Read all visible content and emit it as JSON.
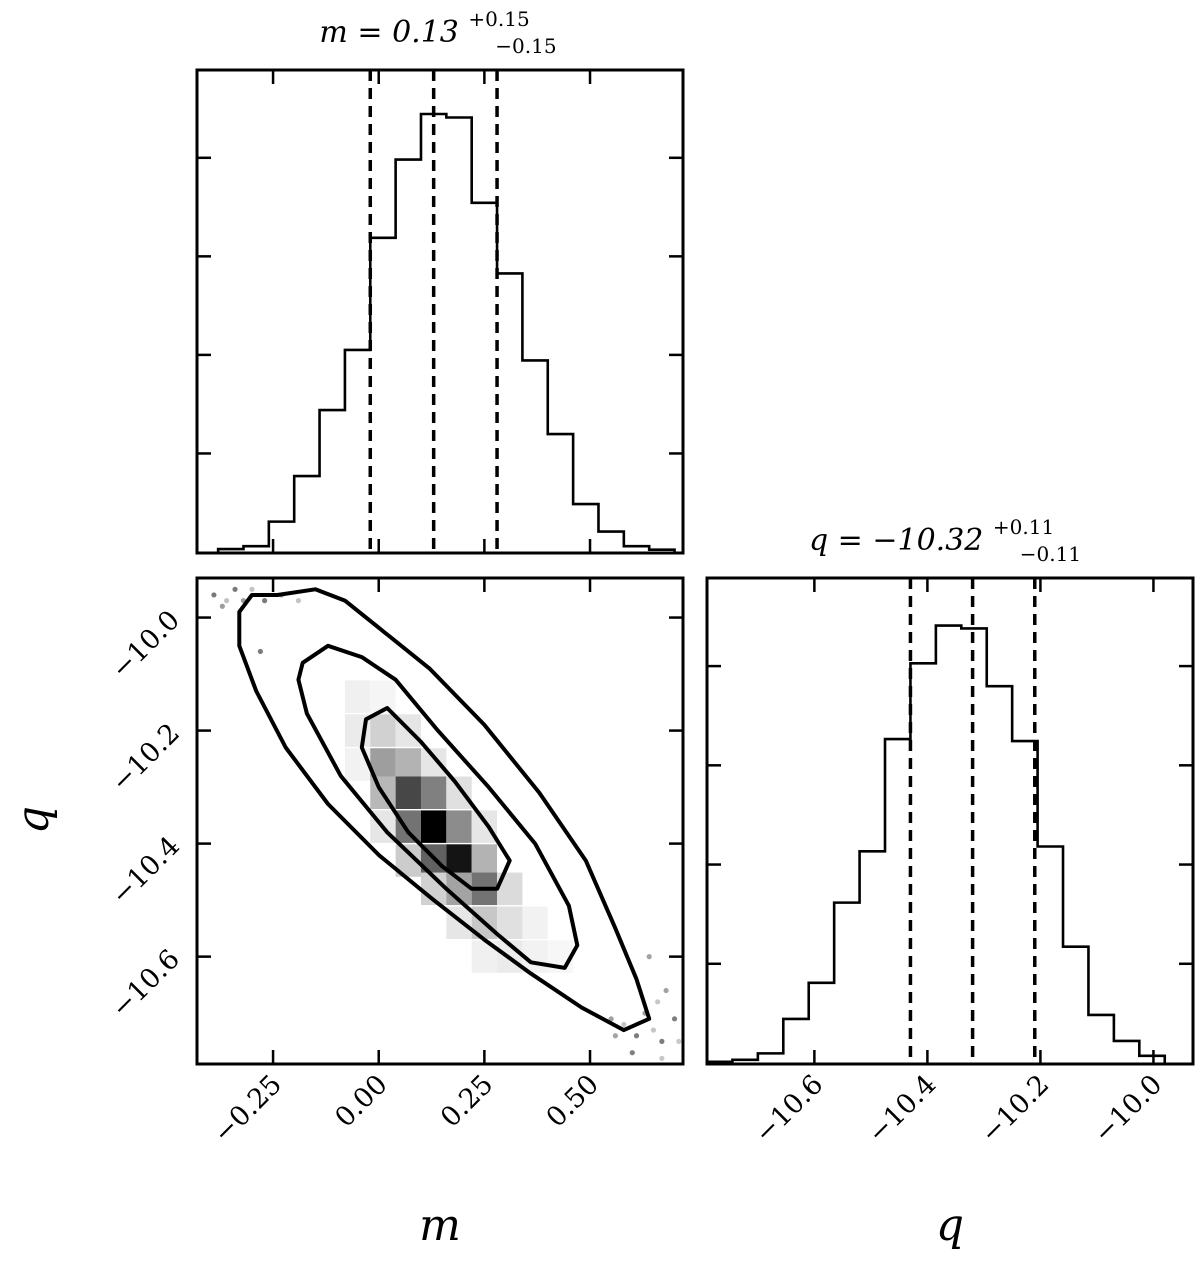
{
  "chart_data": [
    {
      "type": "histogram",
      "panel": "m-marginal",
      "title": {
        "lhs": "m = 0.13",
        "sup": "+0.15",
        "sub": "−0.15"
      },
      "xlim": [
        -0.43,
        0.72
      ],
      "bin_edges": [
        -0.38,
        -0.32,
        -0.26,
        -0.2,
        -0.14,
        -0.08,
        -0.02,
        0.04,
        0.1,
        0.16,
        0.22,
        0.28,
        0.34,
        0.4,
        0.46,
        0.52,
        0.58,
        0.64,
        0.7
      ],
      "counts": [
        5,
        10,
        52,
        130,
        243,
        346,
        538,
        672,
        750,
        744,
        598,
        477,
        328,
        202,
        82,
        35,
        10,
        4
      ],
      "count_max": 750,
      "quantiles": [
        -0.02,
        0.13,
        0.28
      ]
    },
    {
      "type": "histogram",
      "panel": "q-marginal",
      "title": {
        "lhs": "q = −10.32",
        "sup": "+0.11",
        "sub": "−0.11"
      },
      "xlim": [
        -10.79,
        -9.93
      ],
      "xlabel": "q",
      "xticks": [
        "−10.6",
        "−10.4",
        "−10.2",
        "−10.0"
      ],
      "xtick_values": [
        -10.6,
        -10.4,
        -10.2,
        -10.0
      ],
      "bin_edges": [
        -10.79,
        -10.745,
        -10.7,
        -10.655,
        -10.61,
        -10.565,
        -10.52,
        -10.475,
        -10.43,
        -10.385,
        -10.34,
        -10.295,
        -10.25,
        -10.205,
        -10.16,
        -10.115,
        -10.07,
        -10.025,
        -9.98
      ],
      "counts": [
        3,
        8,
        24,
        110,
        200,
        400,
        528,
        808,
        997,
        1091,
        1084,
        940,
        803,
        540,
        290,
        120,
        55,
        18
      ],
      "count_max": 1100,
      "quantiles": [
        -10.43,
        -10.32,
        -10.21
      ]
    },
    {
      "type": "heatmap",
      "panel": "m-q-joint",
      "xlim": [
        -0.43,
        0.72
      ],
      "ylim": [
        -10.79,
        -9.93
      ],
      "xlabel": "m",
      "ylabel": "q",
      "xticks": [
        "−0.25",
        "0.00",
        "0.25",
        "0.50"
      ],
      "xtick_values": [
        -0.25,
        0.0,
        0.25,
        0.5
      ],
      "yticks": [
        "−10.0",
        "−10.2",
        "−10.4",
        "−10.6"
      ],
      "ytick_values": [
        -10.0,
        -10.2,
        -10.4,
        -10.6
      ],
      "cells": [
        {
          "m": -0.05,
          "q": -10.14,
          "density": 0.06
        },
        {
          "m": 0.01,
          "q": -10.14,
          "density": 0.04
        },
        {
          "m": -0.05,
          "q": -10.2,
          "density": 0.08
        },
        {
          "m": 0.01,
          "q": -10.2,
          "density": 0.18
        },
        {
          "m": 0.07,
          "q": -10.2,
          "density": 0.1
        },
        {
          "m": -0.05,
          "q": -10.26,
          "density": 0.05
        },
        {
          "m": 0.01,
          "q": -10.26,
          "density": 0.38
        },
        {
          "m": 0.07,
          "q": -10.26,
          "density": 0.3
        },
        {
          "m": 0.13,
          "q": -10.26,
          "density": 0.1
        },
        {
          "m": 0.01,
          "q": -10.31,
          "density": 0.28
        },
        {
          "m": 0.07,
          "q": -10.31,
          "density": 0.72
        },
        {
          "m": 0.13,
          "q": -10.31,
          "density": 0.5
        },
        {
          "m": 0.19,
          "q": -10.31,
          "density": 0.12
        },
        {
          "m": 0.01,
          "q": -10.37,
          "density": 0.1
        },
        {
          "m": 0.07,
          "q": -10.37,
          "density": 0.55
        },
        {
          "m": 0.13,
          "q": -10.37,
          "density": 1.0
        },
        {
          "m": 0.19,
          "q": -10.37,
          "density": 0.45
        },
        {
          "m": 0.25,
          "q": -10.37,
          "density": 0.1
        },
        {
          "m": 0.07,
          "q": -10.43,
          "density": 0.2
        },
        {
          "m": 0.13,
          "q": -10.43,
          "density": 0.62
        },
        {
          "m": 0.19,
          "q": -10.43,
          "density": 0.92
        },
        {
          "m": 0.25,
          "q": -10.43,
          "density": 0.3
        },
        {
          "m": 0.13,
          "q": -10.48,
          "density": 0.18
        },
        {
          "m": 0.19,
          "q": -10.48,
          "density": 0.36
        },
        {
          "m": 0.25,
          "q": -10.48,
          "density": 0.55
        },
        {
          "m": 0.31,
          "q": -10.48,
          "density": 0.14
        },
        {
          "m": 0.19,
          "q": -10.54,
          "density": 0.1
        },
        {
          "m": 0.25,
          "q": -10.54,
          "density": 0.22
        },
        {
          "m": 0.31,
          "q": -10.54,
          "density": 0.12
        },
        {
          "m": 0.37,
          "q": -10.54,
          "density": 0.05
        },
        {
          "m": 0.25,
          "q": -10.6,
          "density": 0.06
        },
        {
          "m": 0.31,
          "q": -10.6,
          "density": 0.08
        },
        {
          "m": 0.37,
          "q": -10.6,
          "density": 0.05
        },
        {
          "m": 0.43,
          "q": -10.6,
          "density": 0.03
        }
      ],
      "contours": [
        [
          [
            -0.03,
            -10.18
          ],
          [
            0.02,
            -10.16
          ],
          [
            0.1,
            -10.22
          ],
          [
            0.18,
            -10.29
          ],
          [
            0.26,
            -10.37
          ],
          [
            0.31,
            -10.43
          ],
          [
            0.28,
            -10.48
          ],
          [
            0.22,
            -10.48
          ],
          [
            0.15,
            -10.44
          ],
          [
            0.07,
            -10.38
          ],
          [
            0.0,
            -10.3
          ],
          [
            -0.04,
            -10.23
          ]
        ],
        [
          [
            -0.18,
            -10.08
          ],
          [
            -0.12,
            -10.05
          ],
          [
            -0.04,
            -10.07
          ],
          [
            0.04,
            -10.11
          ],
          [
            0.14,
            -10.2
          ],
          [
            0.26,
            -10.3
          ],
          [
            0.37,
            -10.4
          ],
          [
            0.45,
            -10.51
          ],
          [
            0.47,
            -10.58
          ],
          [
            0.44,
            -10.62
          ],
          [
            0.36,
            -10.61
          ],
          [
            0.28,
            -10.56
          ],
          [
            0.16,
            -10.48
          ],
          [
            0.02,
            -10.38
          ],
          [
            -0.09,
            -10.28
          ],
          [
            -0.17,
            -10.17
          ],
          [
            -0.19,
            -10.11
          ]
        ],
        [
          [
            -0.33,
            -9.99
          ],
          [
            -0.3,
            -9.96
          ],
          [
            -0.24,
            -9.96
          ],
          [
            -0.15,
            -9.95
          ],
          [
            -0.08,
            -9.97
          ],
          [
            0.02,
            -10.03
          ],
          [
            0.12,
            -10.09
          ],
          [
            0.25,
            -10.19
          ],
          [
            0.38,
            -10.31
          ],
          [
            0.49,
            -10.43
          ],
          [
            0.56,
            -10.55
          ],
          [
            0.61,
            -10.64
          ],
          [
            0.64,
            -10.71
          ],
          [
            0.58,
            -10.73
          ],
          [
            0.48,
            -10.69
          ],
          [
            0.36,
            -10.63
          ],
          [
            0.25,
            -10.57
          ],
          [
            0.13,
            -10.5
          ],
          [
            0.0,
            -10.42
          ],
          [
            -0.12,
            -10.33
          ],
          [
            -0.22,
            -10.23
          ],
          [
            -0.29,
            -10.13
          ],
          [
            -0.33,
            -10.05
          ]
        ]
      ],
      "scatter": [
        {
          "m": -0.39,
          "q": -9.96
        },
        {
          "m": -0.37,
          "q": -9.98
        },
        {
          "m": -0.36,
          "q": -9.97
        },
        {
          "m": -0.34,
          "q": -9.95
        },
        {
          "m": -0.32,
          "q": -9.97
        },
        {
          "m": -0.3,
          "q": -9.95
        },
        {
          "m": -0.27,
          "q": -9.97
        },
        {
          "m": -0.23,
          "q": -9.96
        },
        {
          "m": -0.19,
          "q": -9.97
        },
        {
          "m": -0.28,
          "q": -10.06
        },
        {
          "m": 0.55,
          "q": -10.71
        },
        {
          "m": 0.58,
          "q": -10.72
        },
        {
          "m": 0.61,
          "q": -10.74
        },
        {
          "m": 0.63,
          "q": -10.7
        },
        {
          "m": 0.65,
          "q": -10.73
        },
        {
          "m": 0.67,
          "q": -10.75
        },
        {
          "m": 0.68,
          "q": -10.66
        },
        {
          "m": 0.66,
          "q": -10.68
        },
        {
          "m": 0.7,
          "q": -10.71
        },
        {
          "m": 0.64,
          "q": -10.6
        },
        {
          "m": 0.67,
          "q": -10.78
        },
        {
          "m": 0.6,
          "q": -10.77
        },
        {
          "m": 0.56,
          "q": -10.74
        },
        {
          "m": 0.71,
          "q": -10.75
        }
      ]
    }
  ]
}
